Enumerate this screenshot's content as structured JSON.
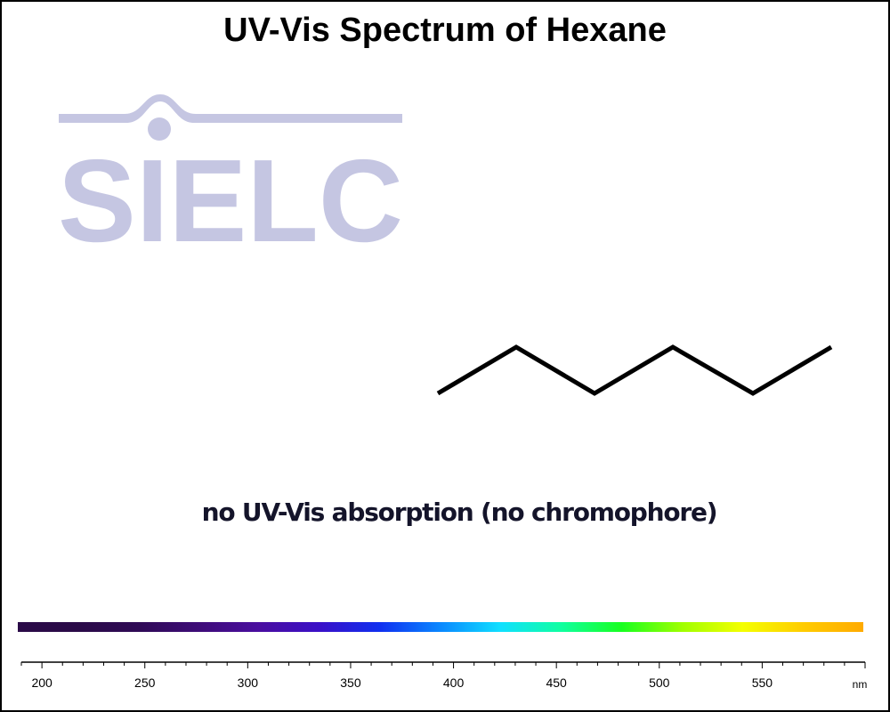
{
  "chart_data": {
    "type": "line",
    "title": "UV-Vis Spectrum of Hexane",
    "annotation": "no UV-Vis absorption (no chromophore)",
    "x_unit": "nm",
    "xlim": [
      190,
      600
    ],
    "x_ticks": [
      200,
      250,
      300,
      350,
      400,
      450,
      500,
      550
    ],
    "series": [],
    "grid": false
  },
  "logo": {
    "text": "SIELC",
    "color": "#c5c6e2"
  },
  "spectrum_colors": [
    "#2a0a48",
    "#2a0a48",
    "#2f0a56",
    "#3e0c78",
    "#4a0ea0",
    "#3a10c8",
    "#1030f0",
    "#0a88ff",
    "#10e0ff",
    "#10ffa0",
    "#18ff20",
    "#a0ff00",
    "#f4ff00",
    "#ffcc00",
    "#ffaa00"
  ]
}
